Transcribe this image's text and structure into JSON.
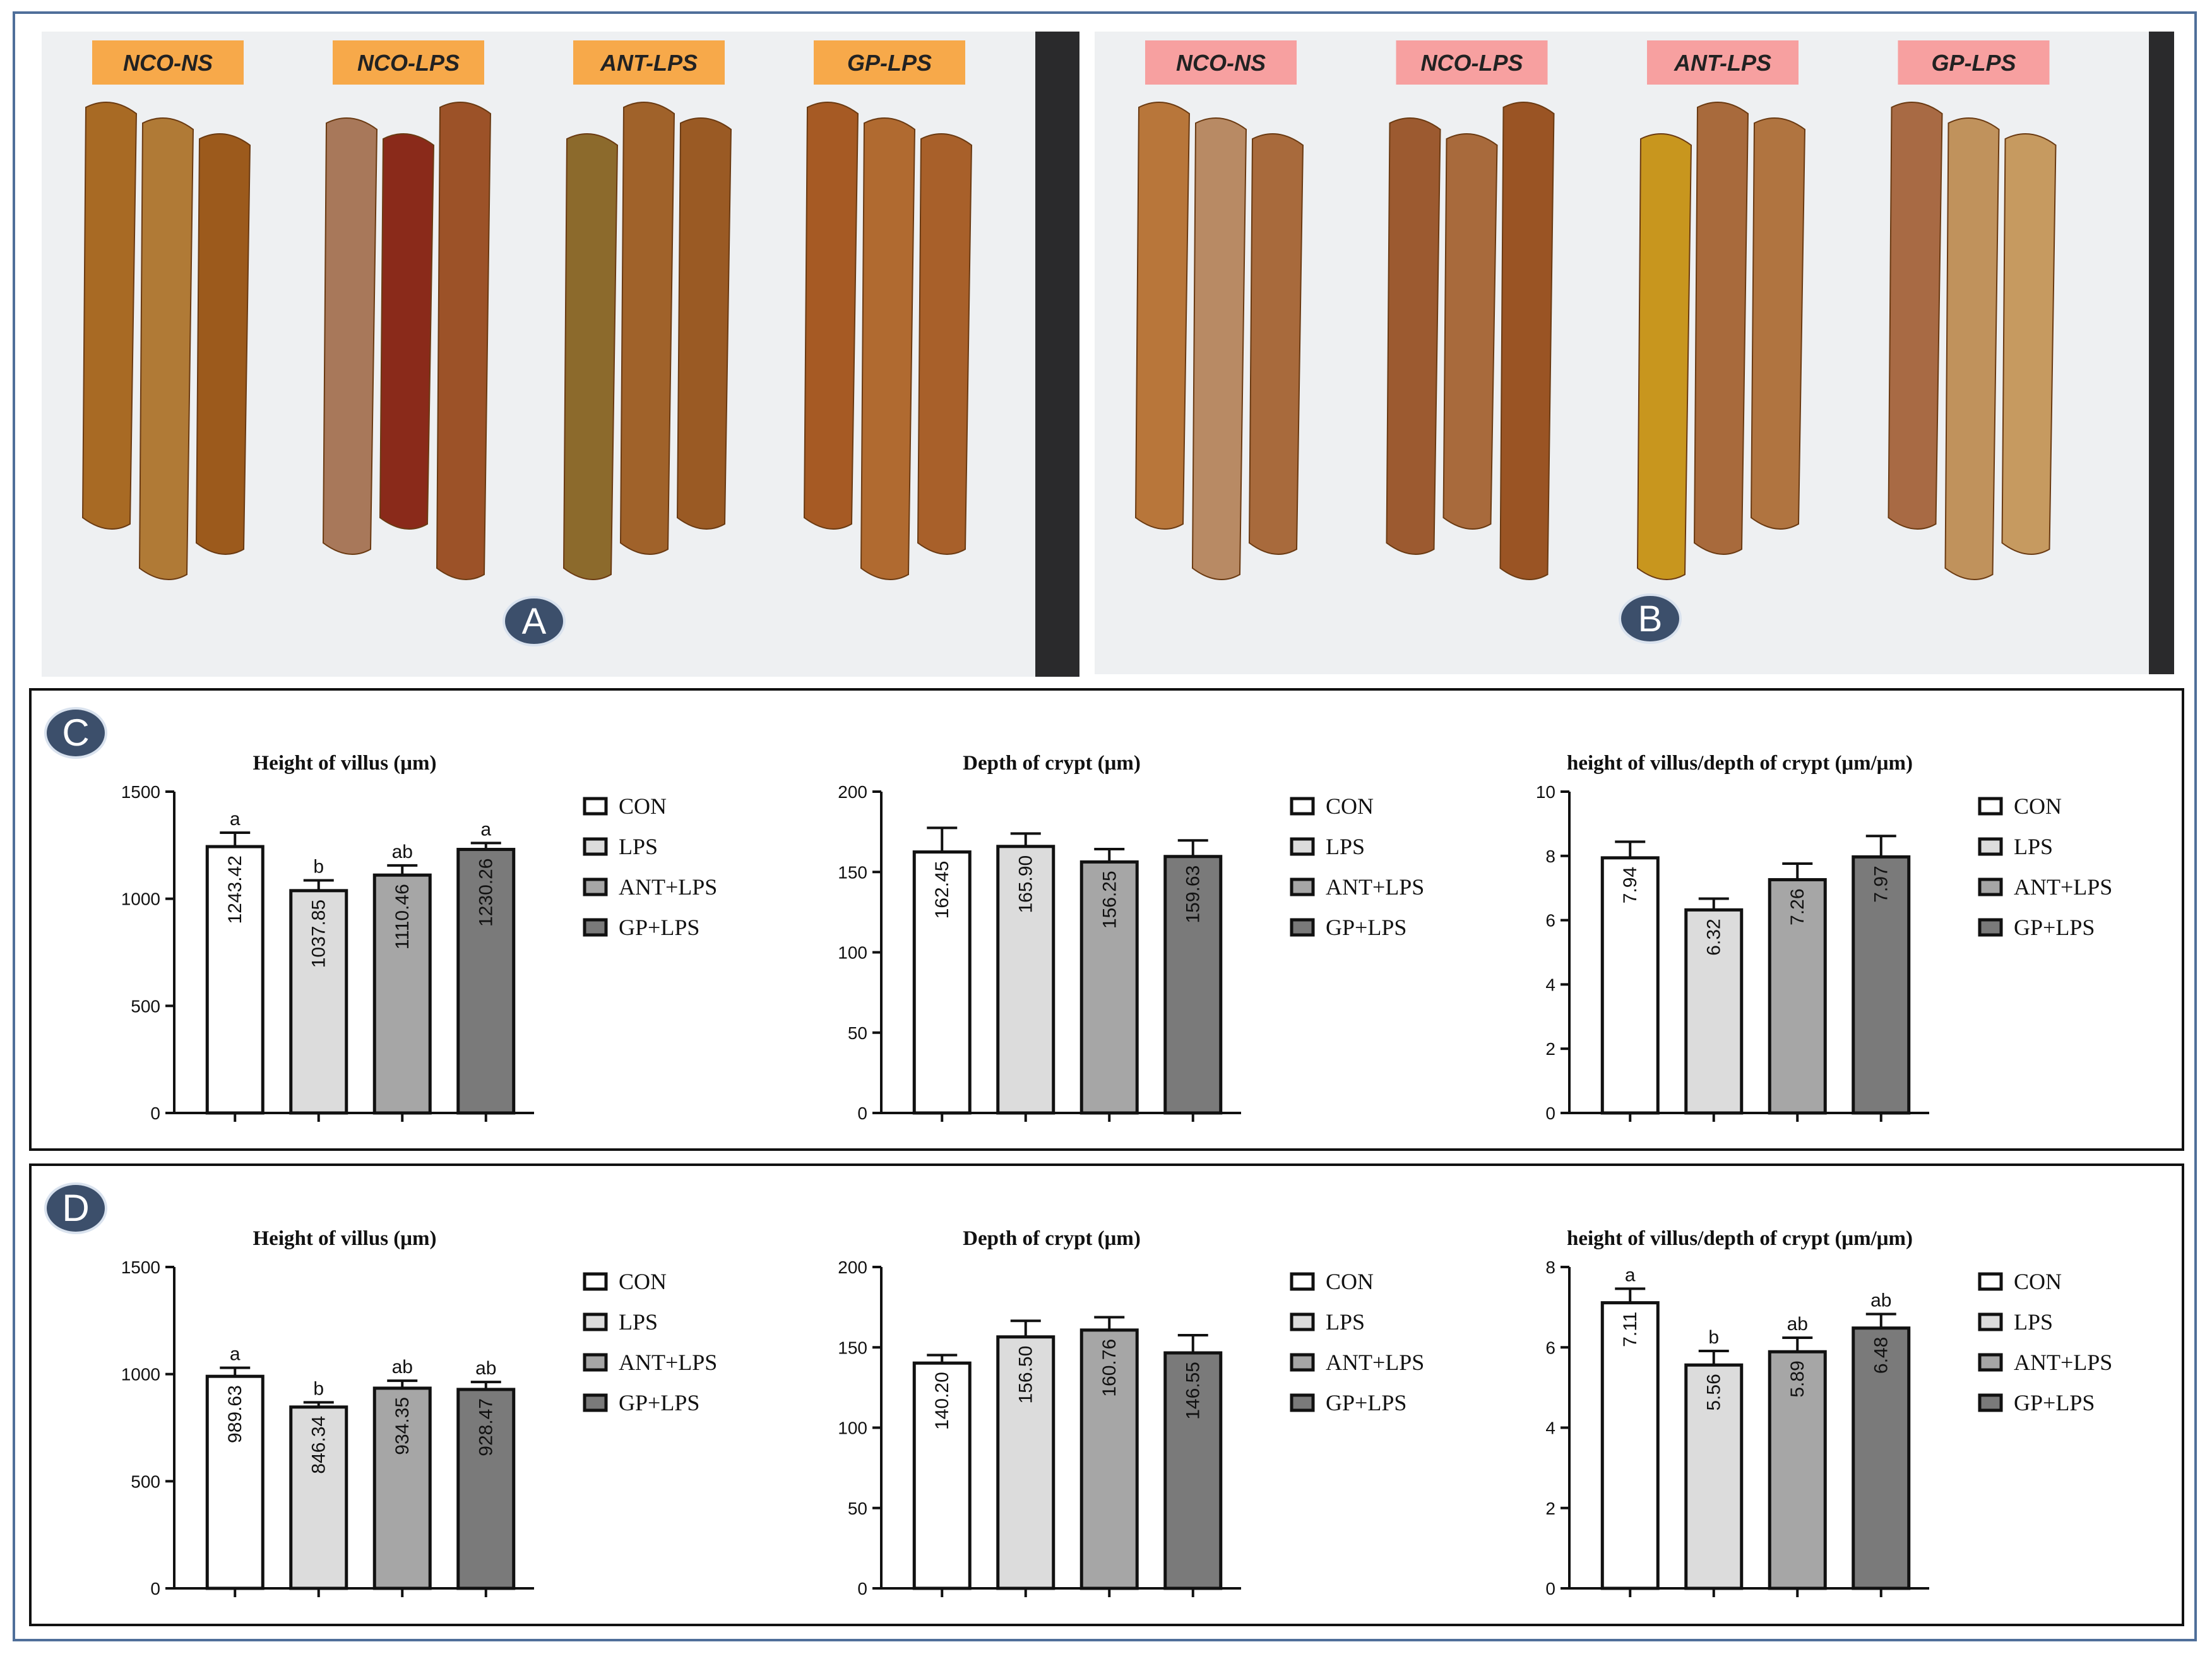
{
  "photos": [
    {
      "badge": "A",
      "label_color": "#f7a94a",
      "labels": [
        "NCO-NS",
        "NCO-LPS",
        "ANT-LPS",
        "GP-LPS"
      ],
      "strip_colors": [
        [
          "#a86a24",
          "#b07a36",
          "#9c5a1c"
        ],
        [
          "#a8785a",
          "#8a2a1a",
          "#9c5228"
        ],
        [
          "#8c6a2c",
          "#a0622a",
          "#9a5a24"
        ],
        [
          "#a65a24",
          "#b06a30",
          "#a8602a"
        ]
      ]
    },
    {
      "badge": "B",
      "label_color": "#f7a0a0",
      "labels": [
        "NCO-NS",
        "NCO-LPS",
        "ANT-LPS",
        "GP-LPS"
      ],
      "strip_colors": [
        [
          "#b8763a",
          "#b88a64",
          "#a86a3c"
        ],
        [
          "#9c5a30",
          "#a86a3c",
          "#9a5424"
        ],
        [
          "#c8961e",
          "#a86a3c",
          "#b07440"
        ],
        [
          "#a86a44",
          "#c0925c",
          "#c69a60"
        ]
      ]
    }
  ],
  "legend": {
    "labels": [
      "CON",
      "LPS",
      "ANT+LPS",
      "GP+LPS"
    ],
    "colors": [
      "#ffffff",
      "#dcdcdc",
      "#a6a6a6",
      "#7a7a7a"
    ]
  },
  "panels": [
    {
      "badge": "C"
    },
    {
      "badge": "D"
    }
  ],
  "chart_data": [
    {
      "panel": "C",
      "type": "bar",
      "title": "Height of villus (μm)",
      "categories": [
        "CON",
        "LPS",
        "ANT+LPS",
        "GP+LPS"
      ],
      "values": [
        1243.42,
        1037.85,
        1110.46,
        1230.26
      ],
      "value_labels": [
        "1243.42",
        "1037.85",
        "1110.46",
        "1230.26"
      ],
      "errors": [
        65,
        48,
        45,
        30
      ],
      "letters": [
        "a",
        "b",
        "ab",
        "a"
      ],
      "ylim": [
        0,
        1500
      ],
      "yticks": [
        0,
        500,
        1000,
        1500
      ]
    },
    {
      "panel": "C",
      "type": "bar",
      "title": "Depth of crypt (μm)",
      "categories": [
        "CON",
        "LPS",
        "ANT+LPS",
        "GP+LPS"
      ],
      "values": [
        162.45,
        165.9,
        156.25,
        159.63
      ],
      "value_labels": [
        "162.45",
        "165.90",
        "156.25",
        "159.63"
      ],
      "errors": [
        15,
        8,
        8,
        10
      ],
      "letters": [
        "",
        "",
        "",
        ""
      ],
      "ylim": [
        0,
        200
      ],
      "yticks": [
        0,
        50,
        100,
        150,
        200
      ]
    },
    {
      "panel": "C",
      "type": "bar",
      "title": "height of villus/depth of crypt (μm/μm)",
      "categories": [
        "CON",
        "LPS",
        "ANT+LPS",
        "GP+LPS"
      ],
      "values": [
        7.94,
        6.32,
        7.26,
        7.97
      ],
      "value_labels": [
        "7.94",
        "6.32",
        "7.26",
        "7.97"
      ],
      "errors": [
        0.5,
        0.35,
        0.5,
        0.65
      ],
      "letters": [
        "",
        "",
        "",
        ""
      ],
      "ylim": [
        0,
        10
      ],
      "yticks": [
        0,
        2,
        4,
        6,
        8,
        10
      ]
    },
    {
      "panel": "D",
      "type": "bar",
      "title": "Height of villus (μm)",
      "categories": [
        "CON",
        "LPS",
        "ANT+LPS",
        "GP+LPS"
      ],
      "values": [
        989.63,
        846.34,
        934.35,
        928.47
      ],
      "value_labels": [
        "989.63",
        "846.34",
        "934.35",
        "928.47"
      ],
      "errors": [
        40,
        22,
        35,
        35
      ],
      "letters": [
        "a",
        "b",
        "ab",
        "ab"
      ],
      "ylim": [
        0,
        1500
      ],
      "yticks": [
        0,
        500,
        1000,
        1500
      ]
    },
    {
      "panel": "D",
      "type": "bar",
      "title": "Depth of crypt (μm)",
      "categories": [
        "CON",
        "LPS",
        "ANT+LPS",
        "GP+LPS"
      ],
      "values": [
        140.2,
        156.5,
        160.76,
        146.55
      ],
      "value_labels": [
        "140.20",
        "156.50",
        "160.76",
        "146.55"
      ],
      "errors": [
        5,
        10,
        8,
        11
      ],
      "letters": [
        "",
        "",
        "",
        ""
      ],
      "ylim": [
        0,
        200
      ],
      "yticks": [
        0,
        50,
        100,
        150,
        200
      ]
    },
    {
      "panel": "D",
      "type": "bar",
      "title": "height of villus/depth of crypt (μm/μm)",
      "categories": [
        "CON",
        "LPS",
        "ANT+LPS",
        "GP+LPS"
      ],
      "values": [
        7.11,
        5.56,
        5.89,
        6.48
      ],
      "value_labels": [
        "7.11",
        "5.56",
        "5.89",
        "6.48"
      ],
      "errors": [
        0.35,
        0.35,
        0.35,
        0.35
      ],
      "letters": [
        "a",
        "b",
        "ab",
        "ab"
      ],
      "ylim": [
        0,
        8
      ],
      "yticks": [
        0,
        2,
        4,
        6,
        8
      ]
    }
  ]
}
